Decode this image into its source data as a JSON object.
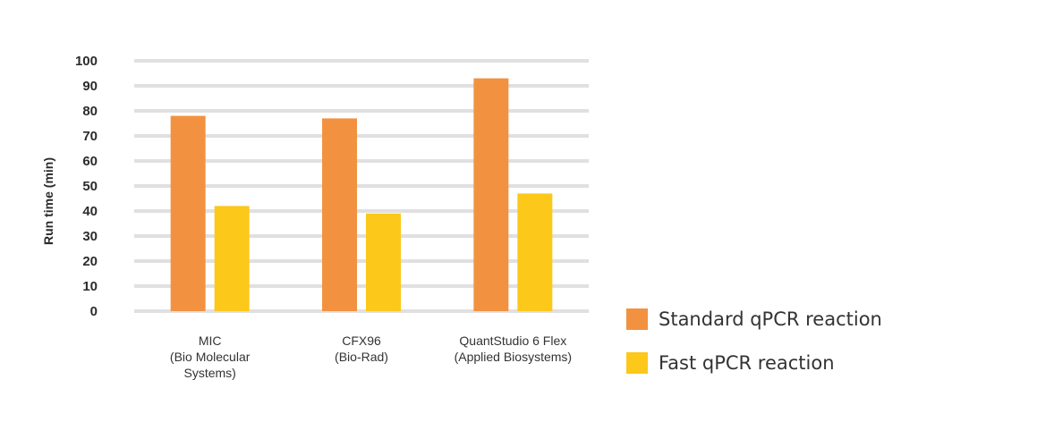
{
  "chart_data": {
    "type": "bar",
    "ylabel": "Run time (min)",
    "xlabel": "",
    "ylim": [
      0,
      100
    ],
    "yticks": [
      0,
      10,
      20,
      30,
      40,
      50,
      60,
      70,
      80,
      90,
      100
    ],
    "grid": true,
    "legend_position": "right",
    "categories": [
      [
        "MIC",
        "(Bio Molecular",
        "Systems)"
      ],
      [
        "CFX96",
        "(Bio-Rad)"
      ],
      [
        "QuantStudio 6 Flex",
        "(Applied Biosystems)"
      ]
    ],
    "series": [
      {
        "name": "Standard qPCR reaction",
        "color": "#f29241",
        "values": [
          78,
          77,
          93
        ]
      },
      {
        "name": "Fast qPCR reaction",
        "color": "#fcc819",
        "values": [
          42,
          39,
          47
        ]
      }
    ]
  }
}
